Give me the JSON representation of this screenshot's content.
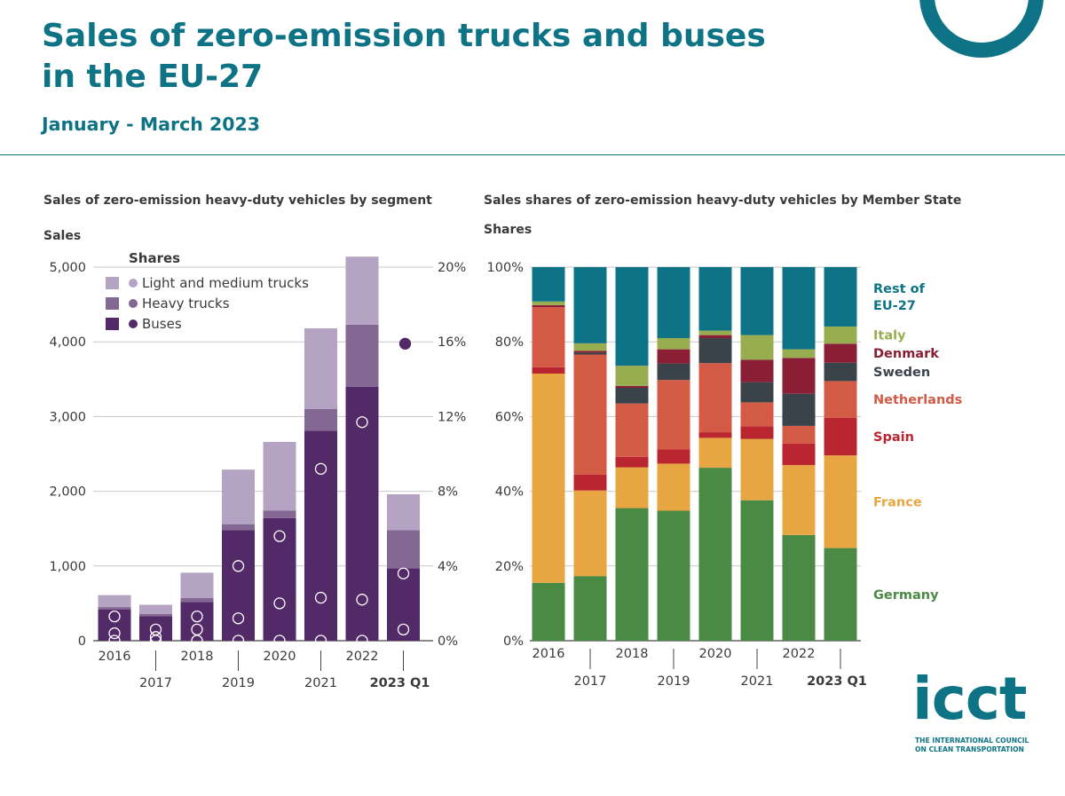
{
  "title_line1": "Sales of zero-emission trucks and buses",
  "title_line2": "in the EU-27",
  "subtitle": "January - March 2023",
  "logo": {
    "word": "icct",
    "tagline1": "THE INTERNATIONAL COUNCIL",
    "tagline2": "ON CLEAN TRANSPORTATION"
  },
  "colors": {
    "brand": "#0d7385",
    "light_medium_trucks": "#b4a3c2",
    "heavy_trucks": "#826892",
    "buses": "#522a68",
    "germany": "#4b8a45",
    "france": "#e7a641",
    "spain": "#b9262f",
    "netherlands": "#d35a44",
    "sweden": "#3b434a",
    "denmark": "#8a1e35",
    "italy": "#98ad50",
    "rest_of_eu27": "#0e7386"
  },
  "chart_data": [
    {
      "type": "bar",
      "stacked": true,
      "title": "Sales of zero-emission heavy-duty vehicles by segment",
      "ylabel": "Sales",
      "ylim": [
        0,
        5000
      ],
      "yticks": [
        "0",
        "1,000",
        "2,000",
        "3,000",
        "4,000",
        "5,000"
      ],
      "y2lim": [
        0,
        20
      ],
      "y2ticks": [
        "0%",
        "4%",
        "8%",
        "12%",
        "16%",
        "20%"
      ],
      "categories": [
        "2016",
        "2017",
        "2018",
        "2019",
        "2020",
        "2021",
        "2022",
        "2023 Q1"
      ],
      "legend_title": "Shares",
      "series": [
        {
          "name": "Buses",
          "values": [
            420,
            330,
            520,
            1480,
            1640,
            2810,
            3400,
            970
          ]
        },
        {
          "name": "Heavy trucks",
          "values": [
            30,
            30,
            50,
            80,
            100,
            290,
            830,
            510
          ]
        },
        {
          "name": "Light and medium trucks",
          "values": [
            160,
            120,
            340,
            730,
            920,
            1080,
            910,
            480
          ]
        }
      ],
      "shares_percent": [
        {
          "name": "Buses",
          "values": [
            1.3,
            0.6,
            1.3,
            4.0,
            5.6,
            9.2,
            11.7,
            15.9
          ]
        },
        {
          "name": "Heavy trucks",
          "values": [
            0,
            0,
            0,
            0,
            0,
            0,
            0,
            0.6
          ]
        },
        {
          "name": "Light and medium trucks",
          "values": [
            0.4,
            0.2,
            0.6,
            1.2,
            2.0,
            2.3,
            2.2,
            3.6
          ]
        }
      ]
    },
    {
      "type": "bar",
      "stacked": true,
      "title": "Sales shares of zero-emission heavy-duty vehicles by Member State",
      "ylabel": "Shares",
      "ylim": [
        0,
        100
      ],
      "yticks": [
        "0%",
        "20%",
        "40%",
        "60%",
        "80%",
        "100%"
      ],
      "categories": [
        "2016",
        "2017",
        "2018",
        "2019",
        "2020",
        "2021",
        "2022",
        "2023 Q1"
      ],
      "series": [
        {
          "name": "Germany",
          "values": [
            15.5,
            17.3,
            35.5,
            34.8,
            46.3,
            37.6,
            28.3,
            24.8
          ]
        },
        {
          "name": "France",
          "values": [
            56.0,
            22.9,
            10.9,
            12.6,
            8.0,
            16.4,
            18.7,
            24.8
          ]
        },
        {
          "name": "Spain",
          "values": [
            1.7,
            4.3,
            2.8,
            3.8,
            1.5,
            3.4,
            5.8,
            10.1
          ]
        },
        {
          "name": "Netherlands",
          "values": [
            16.1,
            32.1,
            14.3,
            18.6,
            18.5,
            6.4,
            4.7,
            9.8
          ]
        },
        {
          "name": "Sweden",
          "values": [
            0.0,
            0.5,
            4.2,
            4.4,
            6.7,
            5.4,
            8.6,
            4.9
          ]
        },
        {
          "name": "Denmark",
          "values": [
            0.5,
            0.5,
            0.5,
            3.8,
            0.8,
            6.0,
            9.6,
            5.1
          ]
        },
        {
          "name": "Italy",
          "values": [
            1.0,
            2.0,
            5.4,
            3.0,
            1.2,
            6.6,
            2.3,
            4.6
          ]
        },
        {
          "name": "Rest of EU-27",
          "values": [
            9.2,
            20.4,
            26.4,
            19.0,
            17.0,
            18.2,
            22.0,
            15.9
          ]
        }
      ],
      "right_labels": [
        {
          "series": "Rest of EU-27",
          "lines": [
            "Rest of",
            "EU-27"
          ]
        },
        {
          "series": "Italy",
          "lines": [
            "Italy"
          ]
        },
        {
          "series": "Denmark",
          "lines": [
            "Denmark"
          ]
        },
        {
          "series": "Sweden",
          "lines": [
            "Sweden"
          ]
        },
        {
          "series": "Netherlands",
          "lines": [
            "Netherlands"
          ]
        },
        {
          "series": "Spain",
          "lines": [
            "Spain"
          ]
        },
        {
          "series": "France",
          "lines": [
            "France"
          ]
        },
        {
          "series": "Germany",
          "lines": [
            "Germany"
          ]
        }
      ]
    }
  ]
}
